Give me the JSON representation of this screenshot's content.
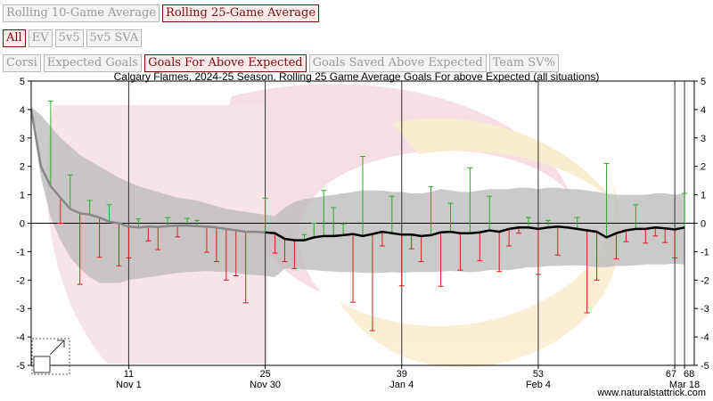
{
  "controls": {
    "window_buttons": [
      {
        "label": "Rolling 10-Game Average",
        "active": false
      },
      {
        "label": "Rolling 25-Game Average",
        "active": true
      }
    ],
    "situation_buttons": [
      {
        "label": "All",
        "active": true
      },
      {
        "label": "EV",
        "active": false
      },
      {
        "label": "5v5",
        "active": false
      },
      {
        "label": "5v5 SVA",
        "active": false
      }
    ],
    "metric_buttons": [
      {
        "label": "Corsi",
        "active": false
      },
      {
        "label": "Expected Goals",
        "active": false
      },
      {
        "label": "Goals For Above Expected",
        "active": true
      },
      {
        "label": "Goals Saved Above Expected",
        "active": false
      },
      {
        "label": "Team SV%",
        "active": false
      }
    ]
  },
  "watermark": "www.naturalstattrick.com",
  "icons": {
    "expand": "expand-icon"
  },
  "colors": {
    "positive": "#2ea82e",
    "negative": "#d42020",
    "line": "#000000",
    "band": "#bdbdbd",
    "accent": "#7a0c0c"
  },
  "chart_data": {
    "type": "line",
    "title": "Calgary Flames, 2024-25 Season, Rolling 25 Game Average Goals For above Expected (all situations)",
    "ylim": [
      -5,
      5
    ],
    "xlim": [
      1,
      69
    ],
    "yticks": [
      5,
      4,
      3,
      2,
      1,
      0,
      -1,
      -2,
      -3,
      -4,
      -5
    ],
    "xticks": [
      {
        "game": 11,
        "label": "11",
        "date": "Nov 1"
      },
      {
        "game": 25,
        "label": "25",
        "date": "Nov 30"
      },
      {
        "game": 39,
        "label": "39",
        "date": "Jan 4"
      },
      {
        "game": 53,
        "label": "53",
        "date": "Feb 4"
      },
      {
        "game": 67,
        "label": "67",
        "date": ""
      },
      {
        "game": 68,
        "label": "68",
        "date": "Mar 18"
      }
    ],
    "rolling_average": [
      4.0,
      2.0,
      1.3,
      0.9,
      0.5,
      0.35,
      0.3,
      0.2,
      0.05,
      0.0,
      -0.12,
      -0.15,
      -0.12,
      -0.13,
      -0.1,
      -0.08,
      -0.08,
      -0.1,
      -0.12,
      -0.15,
      -0.2,
      -0.25,
      -0.3,
      -0.3,
      -0.32,
      -0.35,
      -0.55,
      -0.6,
      -0.6,
      -0.5,
      -0.45,
      -0.45,
      -0.42,
      -0.38,
      -0.45,
      -0.38,
      -0.3,
      -0.35,
      -0.4,
      -0.4,
      -0.45,
      -0.42,
      -0.32,
      -0.3,
      -0.35,
      -0.35,
      -0.32,
      -0.25,
      -0.3,
      -0.2,
      -0.15,
      -0.15,
      -0.2,
      -0.15,
      -0.12,
      -0.15,
      -0.2,
      -0.25,
      -0.3,
      -0.5,
      -0.35,
      -0.25,
      -0.2,
      -0.2,
      -0.15,
      -0.18,
      -0.22,
      -0.15
    ],
    "band_upper": [
      4.1,
      3.8,
      3.4,
      3.0,
      2.7,
      2.4,
      2.2,
      2.0,
      1.8,
      1.6,
      1.45,
      1.3,
      1.2,
      1.1,
      1.0,
      0.9,
      0.85,
      0.8,
      0.7,
      0.6,
      0.5,
      0.45,
      0.4,
      0.35,
      0.3,
      0.25,
      0.55,
      0.75,
      0.85,
      0.9,
      0.95,
      1.0,
      1.05,
      1.1,
      1.15,
      1.15,
      1.15,
      1.1,
      1.1,
      1.05,
      1.05,
      1.1,
      1.2,
      1.15,
      1.1,
      1.1,
      1.15,
      1.2,
      1.2,
      1.2,
      1.25,
      1.25,
      1.2,
      1.25,
      1.25,
      1.2,
      1.2,
      1.15,
      1.1,
      1.05,
      1.0,
      1.0,
      1.0,
      1.0,
      1.05,
      1.05,
      1.0,
      1.05
    ],
    "band_lower": [
      3.9,
      1.6,
      0.2,
      -0.6,
      -1.2,
      -1.6,
      -1.9,
      -2.1,
      -2.1,
      -2.1,
      -2.0,
      -1.95,
      -1.9,
      -1.85,
      -1.8,
      -1.75,
      -1.72,
      -1.7,
      -1.68,
      -1.7,
      -1.72,
      -1.75,
      -1.8,
      -1.82,
      -1.85,
      -1.9,
      -1.6,
      -1.6,
      -1.62,
      -1.65,
      -1.68,
      -1.7,
      -1.72,
      -1.72,
      -1.75,
      -1.75,
      -1.75,
      -1.72,
      -1.75,
      -1.72,
      -1.72,
      -1.72,
      -1.7,
      -1.68,
      -1.7,
      -1.72,
      -1.7,
      -1.65,
      -1.65,
      -1.65,
      -1.6,
      -1.55,
      -1.55,
      -1.5,
      -1.5,
      -1.48,
      -1.48,
      -1.5,
      -1.55,
      -1.55,
      -1.5,
      -1.5,
      -1.48,
      -1.45,
      -1.45,
      -1.45,
      -1.42,
      -1.45
    ],
    "game_values": [
      0.0,
      0.0,
      3.0,
      -0.9,
      1.2,
      -2.5,
      0.5,
      -1.4,
      0.6,
      -1.5,
      -1.1,
      0.3,
      -0.5,
      -0.8,
      0.3,
      -0.4,
      0.25,
      0.2,
      -0.9,
      -1.2,
      -1.8,
      -1.6,
      -2.5,
      0.0,
      1.2,
      -0.7,
      -0.8,
      -1.0,
      0.2,
      0.5,
      1.6,
      1.0,
      0.4,
      -2.4,
      2.8,
      -3.4,
      -0.5,
      1.3,
      -1.8,
      -0.5,
      -0.9,
      1.7,
      -1.9,
      1.0,
      -1.3,
      2.3,
      -1.0,
      1.2,
      -1.4,
      -0.6,
      -0.2,
      0.35,
      -1.6,
      0.25,
      -1.0,
      0.0,
      0.4,
      -2.9,
      -1.7,
      2.6,
      -0.9,
      -0.4,
      0.85,
      -0.5,
      -0.3,
      -0.5,
      -1.0,
      1.2
    ]
  }
}
